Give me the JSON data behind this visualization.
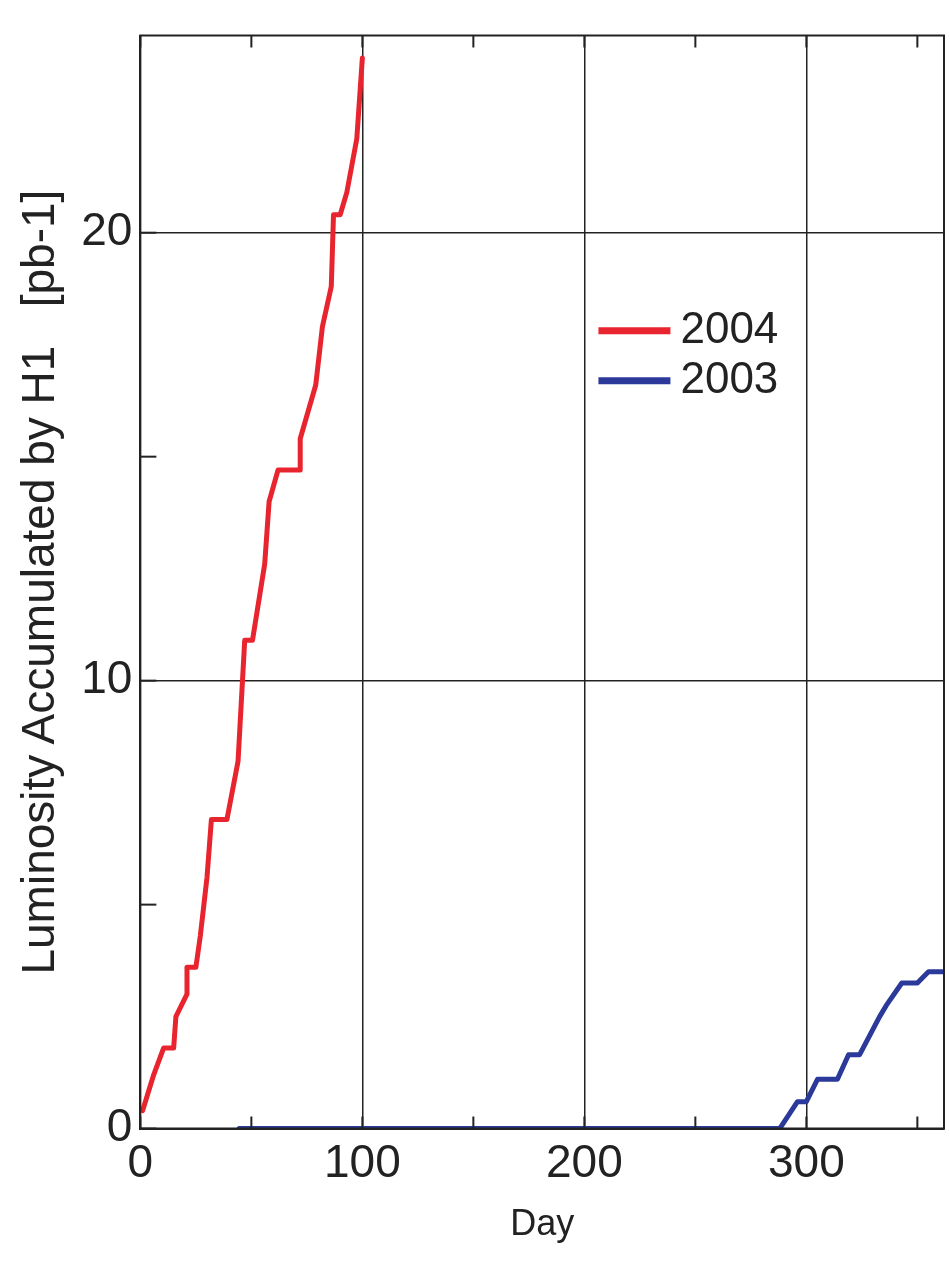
{
  "chart_data": {
    "type": "step",
    "xlabel": "Day",
    "ylabel": "Luminosity Accumulated by H1   [pb-1]",
    "xlim": [
      0,
      362
    ],
    "ylim": [
      0,
      24.4
    ],
    "xticks": [
      0,
      {
        "value": 50,
        "label": null
      },
      100,
      {
        "value": 150,
        "label": null
      },
      200,
      {
        "value": 250,
        "label": null
      },
      300,
      {
        "value": 350,
        "label": null
      }
    ],
    "yticks": [
      0,
      {
        "value": 5,
        "label": null
      },
      10,
      {
        "value": 15,
        "label": null
      },
      20
    ],
    "grid": true,
    "legend": "top",
    "series": [
      {
        "name": "2004",
        "color": "#e8242e",
        "x": [
          1,
          6,
          10.5,
          15,
          16,
          21,
          21,
          25,
          27,
          30,
          32,
          39,
          44,
          46,
          47,
          50.5,
          56,
          58,
          62,
          72,
          72,
          79,
          82,
          86,
          87,
          90,
          93,
          97.5,
          100
        ],
        "values": [
          0.4,
          1.2,
          1.8,
          1.8,
          2.5,
          3.0,
          3.6,
          3.6,
          4.3,
          5.6,
          6.9,
          6.9,
          8.2,
          10.0,
          10.9,
          10.9,
          12.6,
          14.0,
          14.7,
          14.7,
          15.4,
          16.6,
          17.9,
          18.8,
          20.4,
          20.4,
          20.9,
          22.1,
          23.9
        ]
      },
      {
        "name": "2003",
        "color": "#2b3a9a",
        "x": [
          44.5,
          288,
          296,
          300,
          305,
          314,
          319,
          324,
          333,
          336,
          343,
          350,
          355,
          362
        ],
        "values": [
          0,
          0,
          0.6,
          0.6,
          1.1,
          1.1,
          1.65,
          1.65,
          2.5,
          2.75,
          3.25,
          3.25,
          3.5,
          3.5
        ]
      }
    ]
  }
}
